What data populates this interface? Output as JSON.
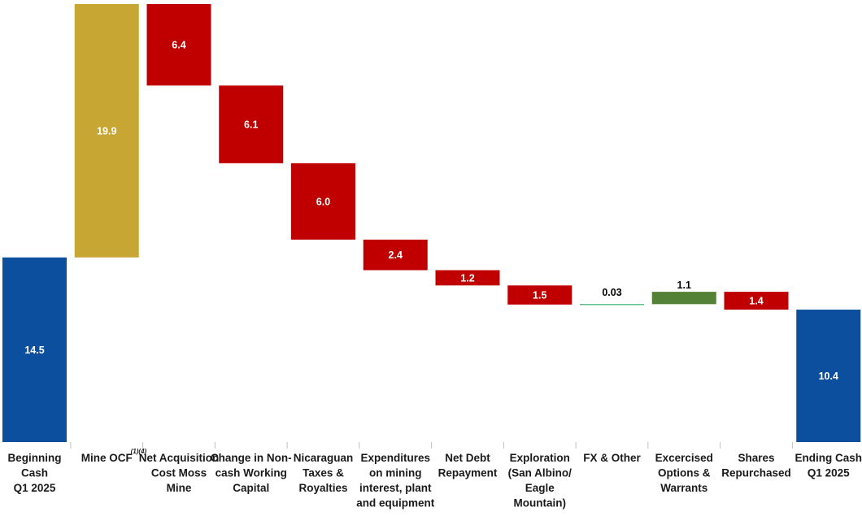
{
  "chart_data": {
    "type": "waterfall",
    "title": "",
    "xlabel": "",
    "ylabel": "",
    "grid": false,
    "legend": "none",
    "categories": [
      {
        "lines": [
          "Beginning",
          "Cash",
          "Q1 2025"
        ]
      },
      {
        "lines": [
          "Mine OCF"
        ],
        "superscript": "(1)(4)"
      },
      {
        "lines": [
          "Net Acquisition",
          "Cost Moss",
          "Mine"
        ]
      },
      {
        "lines": [
          "Change in Non-",
          "cash Working",
          "Capital"
        ]
      },
      {
        "lines": [
          "Nicaraguan",
          "Taxes &",
          "Royalties"
        ]
      },
      {
        "lines": [
          "Expenditures",
          "on mining",
          "interest, plant",
          "and equipment"
        ]
      },
      {
        "lines": [
          "Net Debt",
          "Repayment"
        ]
      },
      {
        "lines": [
          "Exploration",
          "(San Albino/",
          "Eagle",
          "Mountain)"
        ]
      },
      {
        "lines": [
          "FX & Other"
        ]
      },
      {
        "lines": [
          "Excercised",
          "Options &",
          "Warrants"
        ]
      },
      {
        "lines": [
          "Shares",
          "Repurchased"
        ]
      },
      {
        "lines": [
          "Ending Cash",
          "Q1 2025"
        ]
      }
    ],
    "bars": [
      {
        "label": "14.5",
        "start": 0,
        "end": 14.5,
        "kind": "total"
      },
      {
        "label": "19.9",
        "start": 14.5,
        "end": 34.4,
        "kind": "increase-ocf"
      },
      {
        "label": "6.4",
        "start": 34.4,
        "end": 28.0,
        "kind": "decrease"
      },
      {
        "label": "6.1",
        "start": 28.0,
        "end": 21.9,
        "kind": "decrease"
      },
      {
        "label": "6.0",
        "start": 21.9,
        "end": 15.9,
        "kind": "decrease"
      },
      {
        "label": "2.4",
        "start": 15.9,
        "end": 13.5,
        "kind": "decrease"
      },
      {
        "label": "1.2",
        "start": 13.5,
        "end": 12.3,
        "kind": "decrease"
      },
      {
        "label": "1.5",
        "start": 12.3,
        "end": 10.8,
        "kind": "decrease"
      },
      {
        "label": "0.03",
        "start": 10.8,
        "end": 10.83,
        "kind": "increase"
      },
      {
        "label": "1.1",
        "start": 10.83,
        "end": 11.8,
        "kind": "increase"
      },
      {
        "label": "1.4",
        "start": 11.8,
        "end": 10.4,
        "kind": "decrease"
      },
      {
        "label": "10.4",
        "start": 0,
        "end": 10.4,
        "kind": "total"
      }
    ],
    "ylim": [
      0,
      34.4
    ],
    "colors": {
      "total": "#0b4f9e",
      "increase-ocf": "#c8a633",
      "decrease": "#c00000",
      "increase": "#538135",
      "thin-increase": "#3cb371",
      "separator": "#bfbfbf",
      "label-light": "#ffffff",
      "label-dark": "#000000"
    }
  }
}
